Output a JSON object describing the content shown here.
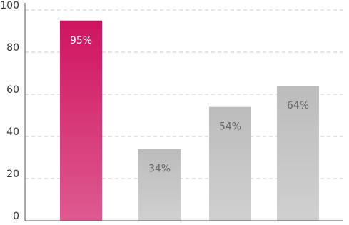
{
  "chart_data": {
    "type": "bar",
    "categories": [
      null,
      null,
      null,
      null
    ],
    "values": [
      95,
      34,
      54,
      64
    ],
    "value_labels": [
      "95%",
      "34%",
      "54%",
      "64%"
    ],
    "colors": [
      "#d01460",
      "#bcbcbc",
      "#bcbcbc",
      "#bcbcbc"
    ],
    "ylim": [
      0,
      100
    ],
    "yticks": [
      0,
      20,
      40,
      60,
      80,
      100
    ],
    "grid": true
  }
}
